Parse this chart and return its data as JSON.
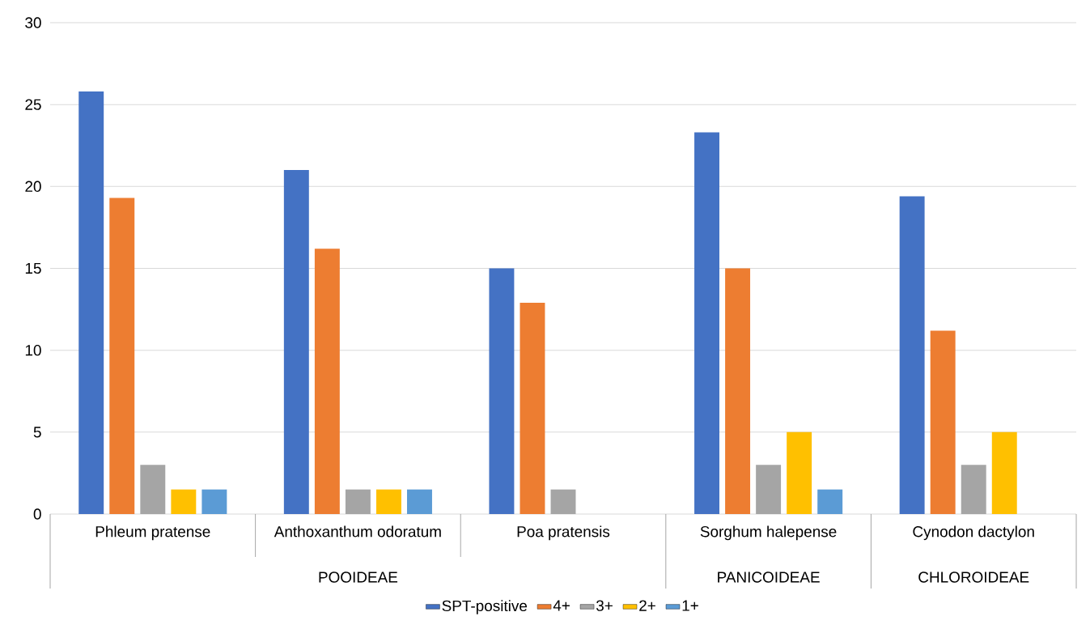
{
  "chart_data": {
    "type": "bar",
    "categories": [
      "Phleum pratense",
      "Anthoxanthum odoratum",
      "Poa pratensis",
      "Sorghum halepense",
      "Cynodon dactylon"
    ],
    "series": [
      {
        "name": "SPT-positive",
        "color": "#4472c4",
        "values": [
          25.8,
          21,
          15,
          23.3,
          19.4
        ]
      },
      {
        "name": "4+",
        "color": "#ed7d31",
        "values": [
          19.3,
          16.2,
          12.9,
          15,
          11.2
        ]
      },
      {
        "name": "3+",
        "color": "#a5a5a5",
        "values": [
          3,
          1.5,
          1.5,
          3,
          3
        ]
      },
      {
        "name": "2+",
        "color": "#ffc000",
        "values": [
          1.5,
          1.5,
          null,
          5,
          5
        ]
      },
      {
        "name": "1+",
        "color": "#5b9bd5",
        "values": [
          1.5,
          1.5,
          null,
          1.5,
          null
        ]
      }
    ],
    "ylim": [
      0,
      30
    ],
    "yticks": [
      0,
      5,
      10,
      15,
      20,
      25,
      30
    ],
    "grid": "y",
    "legend": "bottom",
    "annotations": [
      "POOIDEAE",
      "PANICOIDEAE",
      "CHLOROIDEAE"
    ]
  }
}
